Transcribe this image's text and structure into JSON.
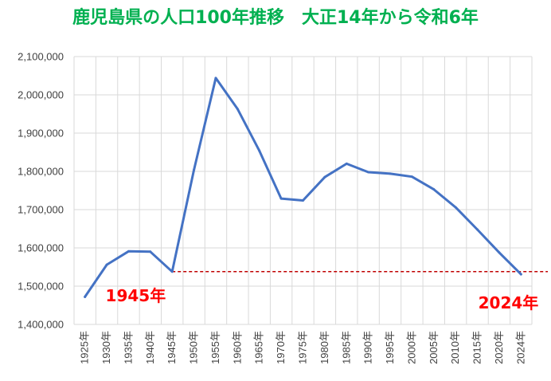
{
  "chart_data": {
    "type": "line",
    "title": "鹿児島県の人口100年推移　大正14年から令和6年",
    "categories": [
      "1925年",
      "1930年",
      "1935年",
      "1940年",
      "1945年",
      "1950年",
      "1955年",
      "1960年",
      "1965年",
      "1970年",
      "1975年",
      "1980年",
      "1985年",
      "1990年",
      "1995年",
      "2000年",
      "2005年",
      "2010年",
      "2015年",
      "2020年",
      "2024年"
    ],
    "series": [
      {
        "values": [
          1472000,
          1556000,
          1591000,
          1590000,
          1538000,
          1804000,
          2044000,
          1963000,
          1854000,
          1729000,
          1724000,
          1785000,
          1820000,
          1798000,
          1794000,
          1786000,
          1753000,
          1706000,
          1648000,
          1588000,
          1531000
        ],
        "color": "#4472c4"
      }
    ],
    "yticks": [
      "1,400,000",
      "1,500,000",
      "1,600,000",
      "1,700,000",
      "1,800,000",
      "1,900,000",
      "2,000,000",
      "2,100,000"
    ],
    "ylim": [
      1400000,
      2100000
    ],
    "grid": true,
    "reference_line": {
      "value": 1538000,
      "color": "#c00000",
      "style": "dashed"
    },
    "annotations": [
      {
        "text": "1945年",
        "category": "1945年",
        "color": "#ff0000"
      },
      {
        "text": "2024年",
        "category": "2024年",
        "color": "#ff0000"
      }
    ]
  }
}
